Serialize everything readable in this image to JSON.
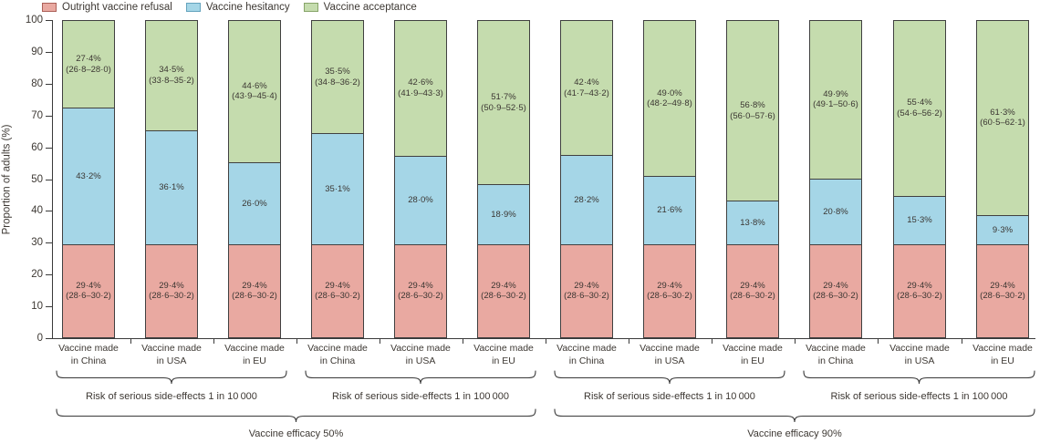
{
  "legend": {
    "items": [
      {
        "id": "refusal",
        "label": "Outright vaccine refusal",
        "color": "#e9a9a1",
        "border": "#ab6058"
      },
      {
        "id": "hesitancy",
        "label": "Vaccine hesitancy",
        "color": "#a5d6e7",
        "border": "#64a3bd"
      },
      {
        "id": "acceptance",
        "label": "Vaccine acceptance",
        "color": "#c5dcae",
        "border": "#87a469"
      }
    ]
  },
  "chart_data": {
    "type": "bar",
    "stacked": true,
    "title": "",
    "ylabel": "Proportion of adults (%)",
    "xlabel": "",
    "ylim": [
      0,
      100
    ],
    "yticks": [
      0,
      10,
      20,
      30,
      40,
      50,
      60,
      70,
      80,
      90,
      100
    ],
    "grid": false,
    "legend_position": "top",
    "colors": {
      "refusal": "#e9a9a1",
      "hesitancy": "#a5d6e7",
      "acceptance": "#c5dcae"
    },
    "series_names": {
      "refusal": "Outright vaccine refusal",
      "hesitancy": "Vaccine hesitancy",
      "acceptance": "Vaccine acceptance"
    },
    "bars": [
      {
        "label_lines": [
          "Vaccine made",
          "in China"
        ],
        "refusal": {
          "value": 29.4,
          "text": "29·4%",
          "ci": "(28·6–30·2)"
        },
        "hesitancy": {
          "value": 43.2,
          "text": "43·2%"
        },
        "acceptance": {
          "value": 27.4,
          "text": "27·4%",
          "ci": "(26·8–28·0)"
        }
      },
      {
        "label_lines": [
          "Vaccine made",
          "in USA"
        ],
        "refusal": {
          "value": 29.4,
          "text": "29·4%",
          "ci": "(28·6–30·2)"
        },
        "hesitancy": {
          "value": 36.1,
          "text": "36·1%"
        },
        "acceptance": {
          "value": 34.5,
          "text": "34·5%",
          "ci": "(33·8–35·2)"
        }
      },
      {
        "label_lines": [
          "Vaccine made",
          "in EU"
        ],
        "refusal": {
          "value": 29.4,
          "text": "29·4%",
          "ci": "(28·6–30·2)"
        },
        "hesitancy": {
          "value": 26.0,
          "text": "26·0%"
        },
        "acceptance": {
          "value": 44.6,
          "text": "44·6%",
          "ci": "(43·9–45·4)"
        }
      },
      {
        "label_lines": [
          "Vaccine made",
          "in China"
        ],
        "refusal": {
          "value": 29.4,
          "text": "29·4%",
          "ci": "(28·6–30·2)"
        },
        "hesitancy": {
          "value": 35.1,
          "text": "35·1%"
        },
        "acceptance": {
          "value": 35.5,
          "text": "35·5%",
          "ci": "(34·8–36·2)"
        }
      },
      {
        "label_lines": [
          "Vaccine made",
          "in USA"
        ],
        "refusal": {
          "value": 29.4,
          "text": "29·4%",
          "ci": "(28·6–30·2)"
        },
        "hesitancy": {
          "value": 28.0,
          "text": "28·0%"
        },
        "acceptance": {
          "value": 42.6,
          "text": "42·6%",
          "ci": "(41·9–43·3)"
        }
      },
      {
        "label_lines": [
          "Vaccine made",
          "in EU"
        ],
        "refusal": {
          "value": 29.4,
          "text": "29·4%",
          "ci": "(28·6–30·2)"
        },
        "hesitancy": {
          "value": 18.9,
          "text": "18·9%"
        },
        "acceptance": {
          "value": 51.7,
          "text": "51·7%",
          "ci": "(50·9–52·5)"
        }
      },
      {
        "label_lines": [
          "Vaccine made",
          "in China"
        ],
        "refusal": {
          "value": 29.4,
          "text": "29·4%",
          "ci": "(28·6–30·2)"
        },
        "hesitancy": {
          "value": 28.2,
          "text": "28·2%"
        },
        "acceptance": {
          "value": 42.4,
          "text": "42·4%",
          "ci": "(41·7–43·2)"
        }
      },
      {
        "label_lines": [
          "Vaccine made",
          "in USA"
        ],
        "refusal": {
          "value": 29.4,
          "text": "29·4%",
          "ci": "(28·6–30·2)"
        },
        "hesitancy": {
          "value": 21.6,
          "text": "21·6%"
        },
        "acceptance": {
          "value": 49.0,
          "text": "49·0%",
          "ci": "(48·2–49·8)"
        }
      },
      {
        "label_lines": [
          "Vaccine made",
          "in EU"
        ],
        "refusal": {
          "value": 29.4,
          "text": "29·4%",
          "ci": "(28·6–30·2)"
        },
        "hesitancy": {
          "value": 13.8,
          "text": "13·8%"
        },
        "acceptance": {
          "value": 56.8,
          "text": "56·8%",
          "ci": "(56·0–57·6)"
        }
      },
      {
        "label_lines": [
          "Vaccine made",
          "in China"
        ],
        "refusal": {
          "value": 29.4,
          "text": "29·4%",
          "ci": "(28·6–30·2)"
        },
        "hesitancy": {
          "value": 20.8,
          "text": "20·8%"
        },
        "acceptance": {
          "value": 49.9,
          "text": "49·9%",
          "ci": "(49·1–50·6)"
        }
      },
      {
        "label_lines": [
          "Vaccine made",
          "in USA"
        ],
        "refusal": {
          "value": 29.4,
          "text": "29·4%",
          "ci": "(28·6–30·2)"
        },
        "hesitancy": {
          "value": 15.3,
          "text": "15·3%"
        },
        "acceptance": {
          "value": 55.4,
          "text": "55·4%",
          "ci": "(54·6–56·2)"
        }
      },
      {
        "label_lines": [
          "Vaccine made",
          "in EU"
        ],
        "refusal": {
          "value": 29.4,
          "text": "29·4%",
          "ci": "(28·6–30·2)"
        },
        "hesitancy": {
          "value": 9.3,
          "text": "9·3%"
        },
        "acceptance": {
          "value": 61.3,
          "text": "61·3%",
          "ci": "(60·5–62·1)"
        }
      }
    ],
    "level1_brackets": [
      {
        "label": "Risk of serious side-effects 1 in 10 000",
        "from": 0,
        "to": 2
      },
      {
        "label": "Risk of serious side-effects 1 in 100 000",
        "from": 3,
        "to": 5
      },
      {
        "label": "Risk of serious side-effects 1 in 10 000",
        "from": 6,
        "to": 8
      },
      {
        "label": "Risk of serious side-effects 1 in 100 000",
        "from": 9,
        "to": 11
      }
    ],
    "level2_brackets": [
      {
        "label": "Vaccine efficacy 50%",
        "from": 0,
        "to": 5
      },
      {
        "label": "Vaccine efficacy 90%",
        "from": 6,
        "to": 11
      }
    ]
  }
}
